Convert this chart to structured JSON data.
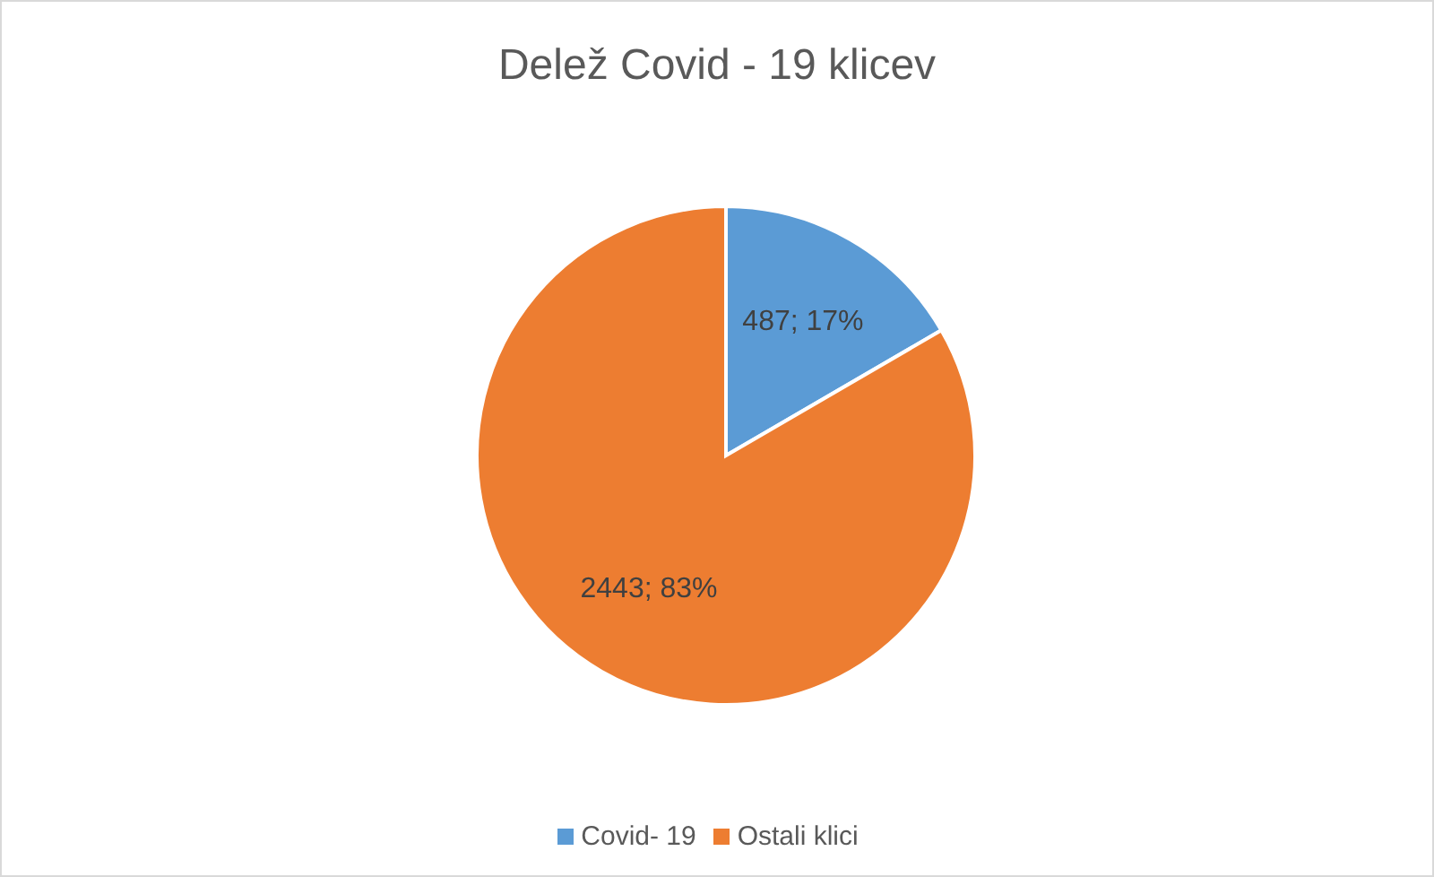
{
  "chart_data": {
    "type": "pie",
    "title": "Delež Covid - 19 klicev",
    "categories": [
      "Covid- 19",
      "Ostali klici"
    ],
    "values": [
      487,
      2443
    ],
    "colors": [
      "#5b9bd5",
      "#ed7d31"
    ],
    "value_labels": [
      "487; 17%",
      "2443; 83%"
    ],
    "legend": "bottom"
  }
}
